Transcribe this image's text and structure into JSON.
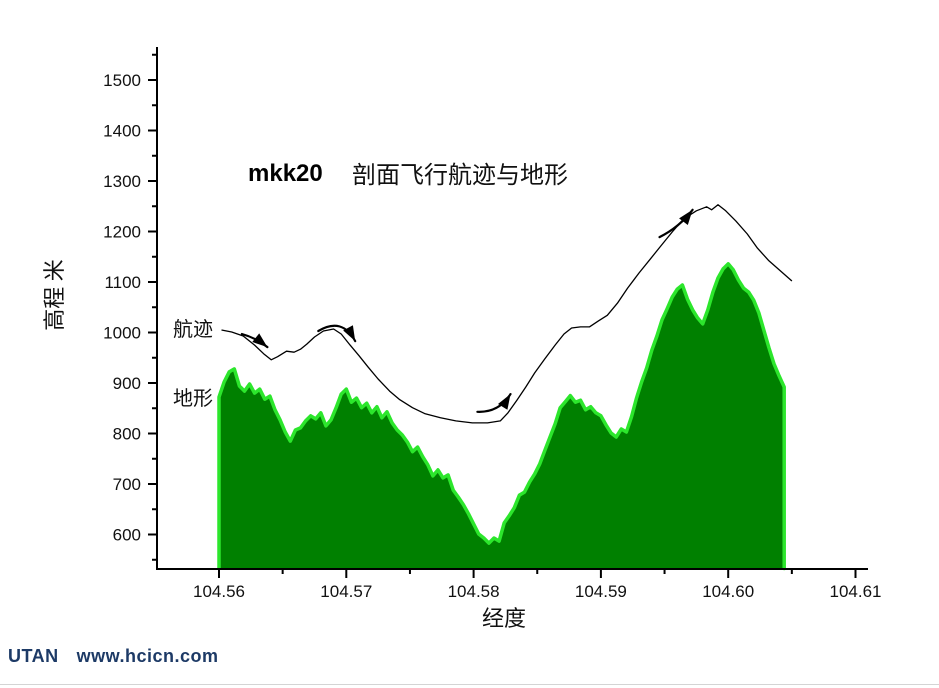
{
  "page": {
    "background": "#ffffff"
  },
  "title": {
    "prefix": "mkk20",
    "main": "剖面飞行航迹与地形"
  },
  "series_labels": {
    "track": "航迹",
    "terrain": "地形"
  },
  "axes": {
    "x": {
      "label": "经度",
      "tick_values": [
        104.56,
        104.57,
        104.58,
        104.59,
        104.6,
        104.61
      ],
      "tick_labels": [
        "104.56",
        "104.57",
        "104.58",
        "104.59",
        "104.60",
        "104.61"
      ],
      "minor_tick_values": [
        104.565,
        104.575,
        104.585,
        104.595,
        104.605
      ]
    },
    "y": {
      "label": "高程 米",
      "tick_values": [
        600,
        700,
        800,
        900,
        1000,
        1100,
        1200,
        1300,
        1400,
        1500
      ],
      "tick_labels": [
        "600",
        "700",
        "800",
        "900",
        "1000",
        "1100",
        "1200",
        "1300",
        "1400",
        "1500"
      ],
      "minor_tick_values": [
        550,
        650,
        750,
        850,
        950,
        1050,
        1150,
        1250,
        1350,
        1450,
        1550
      ]
    }
  },
  "watermark": {
    "brand": "UTAN",
    "site": "www.hcicn.com",
    "color": "#1d3a66"
  },
  "chart_data": {
    "type": "area",
    "title": "mkk20 剖面飞行航迹与地形",
    "xlabel": "经度",
    "ylabel": "高程 米",
    "xlim": [
      104.555,
      104.611
    ],
    "ylim": [
      535,
      1565
    ],
    "grid": false,
    "legend_position": "inline-annotations",
    "series": [
      {
        "name": "地形",
        "type": "area",
        "fill_color": "#008000",
        "edge_color": "#2ce62c",
        "lon_start": 104.56,
        "lon_step": 0.0004,
        "elevations": [
          872,
          902,
          922,
          928,
          894,
          884,
          898,
          880,
          888,
          868,
          874,
          847,
          827,
          803,
          785,
          807,
          811,
          825,
          835,
          829,
          841,
          815,
          827,
          851,
          878,
          888,
          862,
          870,
          851,
          860,
          841,
          853,
          831,
          843,
          821,
          807,
          797,
          783,
          764,
          773,
          754,
          738,
          716,
          728,
          712,
          718,
          688,
          674,
          659,
          641,
          621,
          601,
          593,
          583,
          593,
          587,
          623,
          637,
          653,
          678,
          684,
          704,
          720,
          740,
          767,
          793,
          819,
          851,
          863,
          875,
          862,
          866,
          847,
          853,
          841,
          835,
          817,
          801,
          793,
          809,
          803,
          833,
          870,
          902,
          930,
          965,
          993,
          1025,
          1047,
          1070,
          1086,
          1094,
          1066,
          1045,
          1029,
          1017,
          1045,
          1080,
          1108,
          1126,
          1136,
          1124,
          1104,
          1088,
          1080,
          1064,
          1039,
          1005,
          970,
          938,
          914,
          892
        ]
      },
      {
        "name": "航迹",
        "type": "line",
        "color": "#000000",
        "points": [
          [
            104.5602,
            1005
          ],
          [
            104.561,
            1001
          ],
          [
            104.5619,
            993
          ],
          [
            104.5628,
            975
          ],
          [
            104.5635,
            958
          ],
          [
            104.5641,
            946
          ],
          [
            104.5646,
            952
          ],
          [
            104.5653,
            963
          ],
          [
            104.5659,
            961
          ],
          [
            104.5664,
            967
          ],
          [
            104.5669,
            977
          ],
          [
            104.5675,
            991
          ],
          [
            104.5682,
            1003
          ],
          [
            104.569,
            1007
          ],
          [
            104.5696,
            997
          ],
          [
            104.5703,
            975
          ],
          [
            104.571,
            954
          ],
          [
            104.5717,
            932
          ],
          [
            104.5725,
            908
          ],
          [
            104.5734,
            884
          ],
          [
            104.5742,
            867
          ],
          [
            104.5752,
            851
          ],
          [
            104.5762,
            839
          ],
          [
            104.5774,
            831
          ],
          [
            104.5786,
            825
          ],
          [
            104.5799,
            821
          ],
          [
            104.5811,
            821
          ],
          [
            104.5821,
            825
          ],
          [
            104.5827,
            841
          ],
          [
            104.5834,
            866
          ],
          [
            104.5841,
            892
          ],
          [
            104.5848,
            920
          ],
          [
            104.5856,
            948
          ],
          [
            104.5864,
            975
          ],
          [
            104.5871,
            997
          ],
          [
            104.5877,
            1009
          ],
          [
            104.5884,
            1011
          ],
          [
            104.5891,
            1011
          ],
          [
            104.5898,
            1023
          ],
          [
            104.5905,
            1034
          ],
          [
            104.5913,
            1058
          ],
          [
            104.5921,
            1088
          ],
          [
            104.593,
            1118
          ],
          [
            104.5939,
            1146
          ],
          [
            104.5947,
            1171
          ],
          [
            104.5956,
            1199
          ],
          [
            104.5965,
            1225
          ],
          [
            104.5975,
            1241
          ],
          [
            104.5983,
            1249
          ],
          [
            104.5987,
            1243
          ],
          [
            104.5992,
            1253
          ],
          [
            104.5998,
            1241
          ],
          [
            104.6006,
            1221
          ],
          [
            104.6015,
            1195
          ],
          [
            104.6023,
            1167
          ],
          [
            104.6032,
            1142
          ],
          [
            104.6041,
            1122
          ],
          [
            104.605,
            1102
          ]
        ]
      }
    ],
    "arrows": [
      {
        "name": "flight-direction-arrow-1",
        "tail": [
          104.5618,
          997
        ],
        "head": [
          104.5638,
          971
        ],
        "bulge": 3
      },
      {
        "name": "flight-direction-arrow-2",
        "tail": [
          104.5678,
          1003
        ],
        "head": [
          104.5707,
          983
        ],
        "bulge": 20
      },
      {
        "name": "flight-direction-arrow-3",
        "tail": [
          104.5803,
          843
        ],
        "head": [
          104.5829,
          878
        ],
        "bulge": -11
      },
      {
        "name": "flight-direction-arrow-4",
        "tail": [
          104.5946,
          1189
        ],
        "head": [
          104.5972,
          1243
        ],
        "bulge": -5
      }
    ]
  }
}
